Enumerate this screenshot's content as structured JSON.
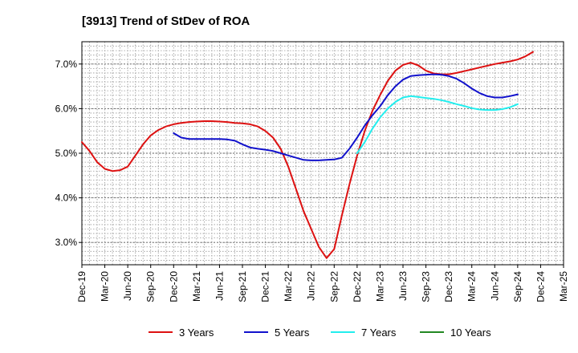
{
  "chart_data": {
    "type": "line",
    "title": "[3913]  Trend of StDev of ROA",
    "xlabel": "",
    "ylabel": "",
    "ylim": [
      2.5,
      7.5
    ],
    "yticks": [
      3.0,
      4.0,
      5.0,
      6.0,
      7.0
    ],
    "ytick_labels": [
      "3.0%",
      "4.0%",
      "5.0%",
      "6.0%",
      "7.0%"
    ],
    "xtick_labels": [
      "Dec-19",
      "Mar-20",
      "Jun-20",
      "Sep-20",
      "Dec-20",
      "Mar-21",
      "Jun-21",
      "Sep-21",
      "Dec-21",
      "Mar-22",
      "Jun-22",
      "Sep-22",
      "Dec-22",
      "Mar-23",
      "Jun-23",
      "Sep-23",
      "Dec-23",
      "Mar-24",
      "Jun-24",
      "Sep-24",
      "Dec-24",
      "Mar-25"
    ],
    "grid": true,
    "legend_position": "bottom",
    "series": [
      {
        "name": "3 Years",
        "color": "#dd1111",
        "points": [
          [
            0,
            5.25
          ],
          [
            1,
            5.05
          ],
          [
            2,
            4.8
          ],
          [
            3,
            4.65
          ],
          [
            4,
            4.6
          ],
          [
            5,
            4.62
          ],
          [
            6,
            4.7
          ],
          [
            7,
            4.95
          ],
          [
            8,
            5.2
          ],
          [
            9,
            5.4
          ],
          [
            10,
            5.52
          ],
          [
            11,
            5.6
          ],
          [
            12,
            5.65
          ],
          [
            13,
            5.68
          ],
          [
            14,
            5.7
          ],
          [
            15,
            5.71
          ],
          [
            16,
            5.72
          ],
          [
            17,
            5.72
          ],
          [
            18,
            5.71
          ],
          [
            19,
            5.7
          ],
          [
            20,
            5.68
          ],
          [
            21,
            5.67
          ],
          [
            22,
            5.65
          ],
          [
            23,
            5.6
          ],
          [
            24,
            5.5
          ],
          [
            25,
            5.35
          ],
          [
            26,
            5.1
          ],
          [
            27,
            4.7
          ],
          [
            28,
            4.2
          ],
          [
            29,
            3.7
          ],
          [
            30,
            3.3
          ],
          [
            31,
            2.9
          ],
          [
            32,
            2.65
          ],
          [
            33,
            2.85
          ],
          [
            34,
            3.6
          ],
          [
            35,
            4.3
          ],
          [
            36,
            4.95
          ],
          [
            37,
            5.5
          ],
          [
            38,
            5.95
          ],
          [
            39,
            6.3
          ],
          [
            40,
            6.62
          ],
          [
            41,
            6.85
          ],
          [
            42,
            6.98
          ],
          [
            43,
            7.03
          ],
          [
            44,
            6.97
          ],
          [
            45,
            6.85
          ],
          [
            46,
            6.79
          ],
          [
            47,
            6.77
          ],
          [
            48,
            6.77
          ],
          [
            49,
            6.8
          ],
          [
            50,
            6.84
          ],
          [
            51,
            6.88
          ],
          [
            52,
            6.92
          ],
          [
            53,
            6.96
          ],
          [
            54,
            7.0
          ],
          [
            55,
            7.03
          ],
          [
            56,
            7.06
          ],
          [
            57,
            7.1
          ],
          [
            58,
            7.17
          ],
          [
            59,
            7.27
          ]
        ]
      },
      {
        "name": "5 Years",
        "color": "#1111cc",
        "points": [
          [
            12,
            5.45
          ],
          [
            13,
            5.35
          ],
          [
            14,
            5.32
          ],
          [
            15,
            5.32
          ],
          [
            16,
            5.32
          ],
          [
            17,
            5.32
          ],
          [
            18,
            5.32
          ],
          [
            19,
            5.31
          ],
          [
            20,
            5.28
          ],
          [
            21,
            5.2
          ],
          [
            22,
            5.13
          ],
          [
            23,
            5.1
          ],
          [
            24,
            5.08
          ],
          [
            25,
            5.05
          ],
          [
            26,
            5.0
          ],
          [
            27,
            4.95
          ],
          [
            28,
            4.9
          ],
          [
            29,
            4.85
          ],
          [
            30,
            4.84
          ],
          [
            31,
            4.84
          ],
          [
            32,
            4.85
          ],
          [
            33,
            4.86
          ],
          [
            34,
            4.9
          ],
          [
            35,
            5.1
          ],
          [
            36,
            5.35
          ],
          [
            37,
            5.62
          ],
          [
            38,
            5.85
          ],
          [
            39,
            6.05
          ],
          [
            40,
            6.3
          ],
          [
            41,
            6.5
          ],
          [
            42,
            6.65
          ],
          [
            43,
            6.73
          ],
          [
            44,
            6.75
          ],
          [
            45,
            6.76
          ],
          [
            46,
            6.77
          ],
          [
            47,
            6.76
          ],
          [
            48,
            6.73
          ],
          [
            49,
            6.67
          ],
          [
            50,
            6.57
          ],
          [
            51,
            6.45
          ],
          [
            52,
            6.35
          ],
          [
            53,
            6.28
          ],
          [
            54,
            6.25
          ],
          [
            55,
            6.25
          ],
          [
            56,
            6.28
          ],
          [
            57,
            6.32
          ]
        ]
      },
      {
        "name": "7 Years",
        "color": "#22eeee",
        "points": [
          [
            36,
            5.0
          ],
          [
            37,
            5.25
          ],
          [
            38,
            5.55
          ],
          [
            39,
            5.8
          ],
          [
            40,
            6.0
          ],
          [
            41,
            6.15
          ],
          [
            42,
            6.25
          ],
          [
            43,
            6.28
          ],
          [
            44,
            6.26
          ],
          [
            45,
            6.24
          ],
          [
            46,
            6.22
          ],
          [
            47,
            6.19
          ],
          [
            48,
            6.15
          ],
          [
            49,
            6.1
          ],
          [
            50,
            6.06
          ],
          [
            51,
            6.01
          ],
          [
            52,
            5.98
          ],
          [
            53,
            5.97
          ],
          [
            54,
            5.97
          ],
          [
            55,
            5.99
          ],
          [
            56,
            6.03
          ],
          [
            57,
            6.1
          ]
        ]
      },
      {
        "name": "10 Years",
        "color": "#228822",
        "points": []
      }
    ]
  }
}
